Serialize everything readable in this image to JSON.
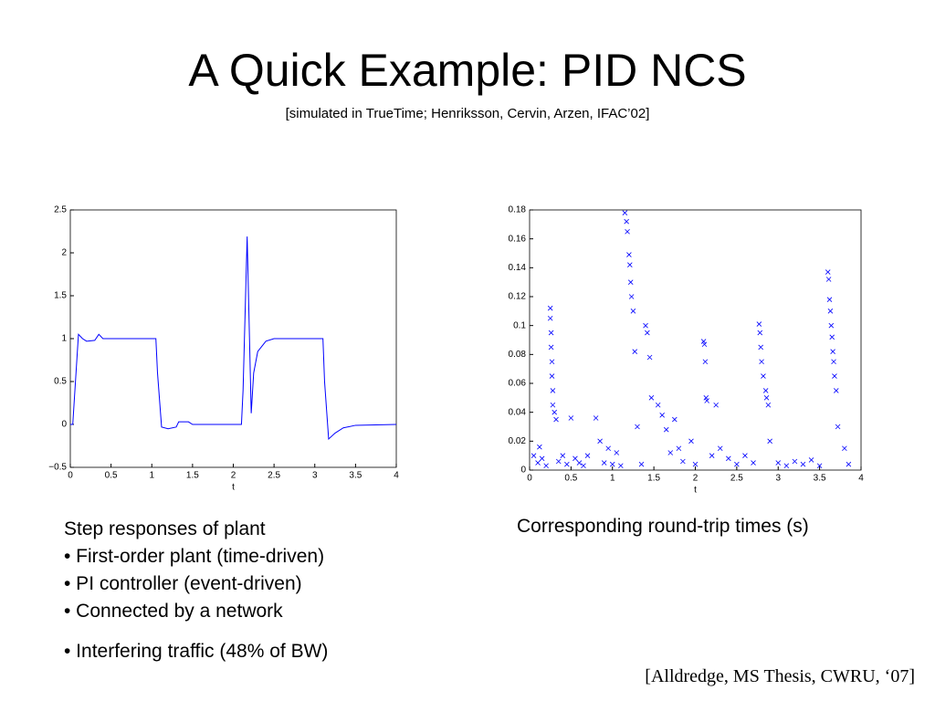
{
  "header": {
    "title": "A Quick Example: PID NCS",
    "subtitle": "[simulated in TrueTime; Henriksson, Cervin, Arzen, IFAC’02]"
  },
  "chart_data": [
    {
      "type": "line",
      "xlabel": "t",
      "x": [
        0,
        0.03,
        0.1,
        0.15,
        0.2,
        0.3,
        0.35,
        0.4,
        1.05,
        1.07,
        1.12,
        1.2,
        1.3,
        1.33,
        1.45,
        1.5,
        2.1,
        2.12,
        2.17,
        2.22,
        2.25,
        2.3,
        2.4,
        2.5,
        3.1,
        3.12,
        3.17,
        3.25,
        3.35,
        3.5,
        4
      ],
      "values": [
        0,
        0,
        1.05,
        1.0,
        0.97,
        0.98,
        1.05,
        1.0,
        1.0,
        0.6,
        -0.03,
        -0.05,
        -0.03,
        0.03,
        0.03,
        0,
        0,
        0.4,
        2.19,
        0.13,
        0.6,
        0.85,
        0.97,
        1.0,
        1.0,
        0.5,
        -0.17,
        -0.1,
        -0.04,
        -0.01,
        0
      ],
      "color": "#0000ff",
      "xlim": [
        0,
        4
      ],
      "xticks": [
        0,
        0.5,
        1,
        1.5,
        2,
        2.5,
        3,
        3.5,
        4
      ],
      "ylim": [
        -0.5,
        2.5
      ],
      "yticks": [
        {
          "value": -0.5,
          "label": "−0.5"
        },
        0,
        0.5,
        1,
        1.5,
        2,
        2.5
      ]
    },
    {
      "type": "scatter",
      "xlabel": "t",
      "x": [
        0.05,
        0.1,
        0.12,
        0.15,
        0.2,
        0.25,
        0.25,
        0.26,
        0.26,
        0.27,
        0.27,
        0.28,
        0.28,
        0.3,
        0.32,
        0.35,
        0.4,
        0.45,
        0.5,
        0.55,
        0.6,
        0.65,
        0.7,
        0.8,
        0.85,
        0.9,
        0.95,
        1.0,
        1.05,
        1.1,
        1.15,
        1.17,
        1.18,
        1.2,
        1.21,
        1.22,
        1.23,
        1.25,
        1.27,
        1.3,
        1.35,
        1.4,
        1.42,
        1.45,
        1.47,
        1.55,
        1.6,
        1.65,
        1.7,
        1.75,
        1.8,
        1.85,
        1.95,
        2.0,
        2.1,
        2.11,
        2.12,
        2.13,
        2.14,
        2.2,
        2.25,
        2.3,
        2.4,
        2.5,
        2.6,
        2.7,
        2.77,
        2.78,
        2.79,
        2.8,
        2.82,
        2.85,
        2.86,
        2.88,
        2.9,
        3.0,
        3.1,
        3.2,
        3.3,
        3.4,
        3.5,
        3.6,
        3.61,
        3.62,
        3.63,
        3.64,
        3.65,
        3.66,
        3.67,
        3.68,
        3.7,
        3.72,
        3.8,
        3.85
      ],
      "values": [
        0.01,
        0.005,
        0.016,
        0.008,
        0.003,
        0.112,
        0.105,
        0.095,
        0.085,
        0.075,
        0.065,
        0.055,
        0.045,
        0.04,
        0.035,
        0.006,
        0.01,
        0.004,
        0.036,
        0.008,
        0.005,
        0.003,
        0.01,
        0.036,
        0.02,
        0.005,
        0.015,
        0.004,
        0.012,
        0.003,
        0.178,
        0.172,
        0.165,
        0.149,
        0.142,
        0.13,
        0.12,
        0.11,
        0.082,
        0.03,
        0.004,
        0.1,
        0.095,
        0.078,
        0.05,
        0.045,
        0.038,
        0.028,
        0.012,
        0.035,
        0.015,
        0.006,
        0.02,
        0.004,
        0.089,
        0.087,
        0.075,
        0.05,
        0.048,
        0.01,
        0.045,
        0.015,
        0.008,
        0.004,
        0.01,
        0.005,
        0.101,
        0.095,
        0.085,
        0.075,
        0.065,
        0.055,
        0.05,
        0.045,
        0.02,
        0.005,
        0.003,
        0.006,
        0.004,
        0.007,
        0.003,
        0.137,
        0.132,
        0.118,
        0.11,
        0.1,
        0.092,
        0.082,
        0.075,
        0.065,
        0.055,
        0.03,
        0.015,
        0.004
      ],
      "color": "#0000ff",
      "xlim": [
        0,
        4
      ],
      "xticks": [
        0,
        0.5,
        1,
        1.5,
        2,
        2.5,
        3,
        3.5,
        4
      ],
      "ylim": [
        0,
        0.18
      ],
      "yticks": [
        0,
        0.02,
        0.04,
        0.06,
        0.08,
        0.1,
        0.12,
        0.14,
        0.16,
        0.18
      ]
    }
  ],
  "captions": {
    "left": [
      "Step responses of plant",
      "• First-order plant (time-driven)",
      "• PI controller (event-driven)",
      "• Connected by a network",
      "• Interfering traffic (48% of BW)"
    ],
    "right": "Corresponding round-trip times (s)",
    "citation": "[Alldredge, MS Thesis, CWRU, ‘07]"
  }
}
